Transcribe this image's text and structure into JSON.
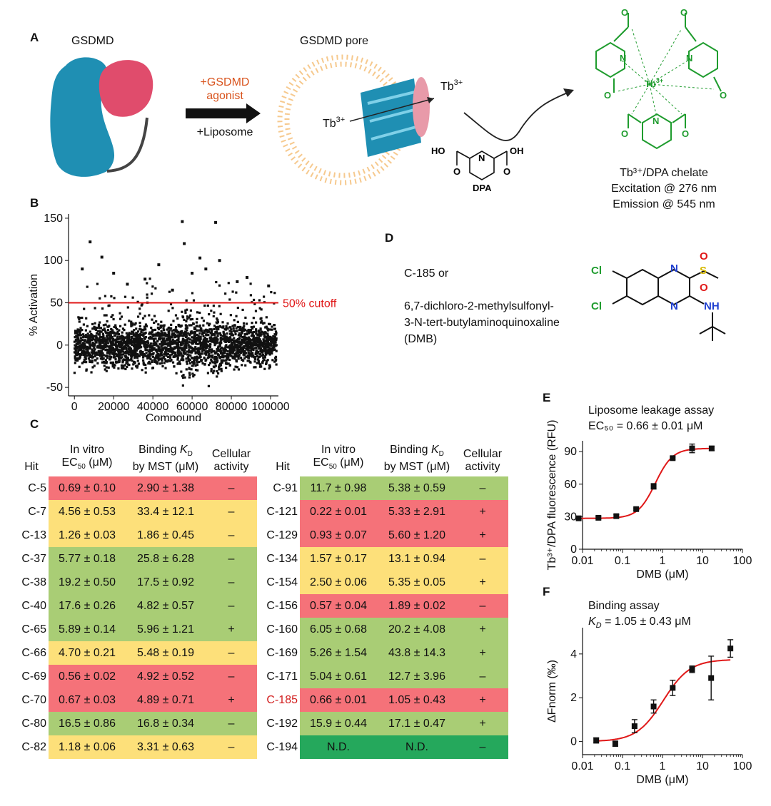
{
  "panel_labels": {
    "a": "A",
    "b": "B",
    "c": "C",
    "d": "D",
    "e": "E",
    "f": "F"
  },
  "panel_a": {
    "gsdmd_label": "GSDMD",
    "pore_label": "GSDMD pore",
    "agonist_text_1": "+GSDMD",
    "agonist_text_2": "agonist",
    "liposome_text": "+Liposome",
    "tb_inside": "Tb",
    "tb_inside_sup": "3+",
    "tb_outside": "Tb",
    "tb_outside_sup": "3+",
    "dpa_label": "DPA",
    "chelate_center": "Tb",
    "chelate_center_sup": "3+",
    "chelate_title": "Tb³⁺/DPA chelate",
    "excitation": "Excitation @ 276 nm",
    "emission": "Emission @ 545 nm",
    "colors": {
      "gsdmd_blue": "#1f8fb3",
      "gsdmd_pink": "#e04c6c",
      "agonist": "#d9541e",
      "chem_green": "#1f9c2e"
    }
  },
  "chart_data": [
    {
      "panel": "B",
      "type": "scatter",
      "xlabel": "Compound",
      "ylabel": "% Activation",
      "xlim": [
        -3000,
        104000
      ],
      "ylim": [
        -60,
        155
      ],
      "xticks": [
        0,
        20000,
        40000,
        60000,
        80000,
        100000
      ],
      "xtick_labels": [
        "0",
        "20000",
        "40000",
        "60000",
        "80000",
        "100000"
      ],
      "yticks": [
        -50,
        0,
        50,
        100,
        150
      ],
      "ytick_labels": [
        "-50",
        "0",
        "50",
        "100",
        "150"
      ],
      "cutoff_value": 50,
      "cutoff_label": "50% cutoff",
      "n_points": 103000,
      "outliers": [
        {
          "x": 8000,
          "y": 122
        },
        {
          "x": 14000,
          "y": 104
        },
        {
          "x": 55000,
          "y": 146
        },
        {
          "x": 56000,
          "y": 120
        },
        {
          "x": 72000,
          "y": 145
        },
        {
          "x": 64000,
          "y": 103
        },
        {
          "x": 74000,
          "y": 100
        },
        {
          "x": 43000,
          "y": 95
        },
        {
          "x": 88000,
          "y": 80
        },
        {
          "x": 36000,
          "y": 78
        },
        {
          "x": 20000,
          "y": 85
        },
        {
          "x": 99000,
          "y": 70
        },
        {
          "x": 4000,
          "y": 90
        },
        {
          "x": 60000,
          "y": 85
        },
        {
          "x": 67000,
          "y": 90
        },
        {
          "x": 83000,
          "y": 75
        },
        {
          "x": 27000,
          "y": 72
        },
        {
          "x": 50000,
          "y": 65
        }
      ]
    },
    {
      "panel": "E",
      "type": "line",
      "title": "Liposome leakage assay",
      "subtitle": "EC₅₀ = 0.66 ± 0.01 μM",
      "xlabel": "DMB (μM)",
      "ylabel": "Tb³⁺/DPA fluorescence (RFU)",
      "xscale": "log",
      "xlim": [
        0.01,
        100
      ],
      "ylim": [
        0,
        100
      ],
      "xticks": [
        0.01,
        0.1,
        1,
        10,
        100
      ],
      "xtick_labels": [
        "0.01",
        "0.1",
        "1",
        "10",
        "100"
      ],
      "yticks": [
        0,
        30,
        60,
        90
      ],
      "ytick_labels": [
        "0",
        "30",
        "60",
        "90"
      ],
      "fit": {
        "bottom": 28.5,
        "top": 93,
        "ec50": 0.66,
        "hill": 2.0
      },
      "points": [
        {
          "x": 0.008,
          "y": 28.5,
          "err": 1
        },
        {
          "x": 0.025,
          "y": 29,
          "err": 1
        },
        {
          "x": 0.07,
          "y": 30.5,
          "err": 1.5
        },
        {
          "x": 0.22,
          "y": 37,
          "err": 1
        },
        {
          "x": 0.6,
          "y": 58,
          "err": 2.5
        },
        {
          "x": 1.8,
          "y": 84,
          "err": 1
        },
        {
          "x": 5.5,
          "y": 93,
          "err": 4
        },
        {
          "x": 17,
          "y": 93,
          "err": 2
        }
      ]
    },
    {
      "panel": "F",
      "type": "line",
      "title": "Binding assay",
      "subtitle_prefix": "K",
      "subtitle_sub": "D",
      "subtitle_rest": " = 1.05 ± 0.43 μM",
      "xlabel": "DMB (μM)",
      "ylabel": "ΔFnorm (‰)",
      "xscale": "log",
      "xlim": [
        0.01,
        100
      ],
      "ylim": [
        -0.6,
        5.2
      ],
      "xticks": [
        0.01,
        0.1,
        1,
        10,
        100
      ],
      "xtick_labels": [
        "0.01",
        "0.1",
        "1",
        "10",
        "100"
      ],
      "yticks": [
        0,
        2,
        4
      ],
      "ytick_labels": [
        "0",
        "2",
        "4"
      ],
      "fit": {
        "bottom": 0.0,
        "top": 3.75,
        "ec50": 1.05,
        "hill": 1.3
      },
      "points": [
        {
          "x": 0.022,
          "y": 0.05,
          "err": 0.12
        },
        {
          "x": 0.066,
          "y": -0.1,
          "err": 0.12
        },
        {
          "x": 0.2,
          "y": 0.7,
          "err": 0.3
        },
        {
          "x": 0.6,
          "y": 1.6,
          "err": 0.3
        },
        {
          "x": 1.8,
          "y": 2.45,
          "err": 0.35
        },
        {
          "x": 5.5,
          "y": 3.3,
          "err": 0.15
        },
        {
          "x": 16.5,
          "y": 2.9,
          "err": 1.0
        },
        {
          "x": 50,
          "y": 4.25,
          "err": 0.4
        }
      ]
    }
  ],
  "panel_c": {
    "headers": {
      "hit": "Hit",
      "ec50_l1": "In vitro",
      "ec50_l2a": "EC",
      "ec50_sub": "50",
      "ec50_l2b": " (μM)",
      "kd_l1a": "Binding ",
      "kd_l1b": "K",
      "kd_sub": "D",
      "kd_l2": "by MST (μM)",
      "cell_l1": "Cellular",
      "cell_l2": "activity"
    },
    "left_rows": [
      {
        "hit": "C-5",
        "ec50": "0.69 ± 0.10",
        "kd": "2.90 ± 1.38",
        "cell": "–",
        "color": "r"
      },
      {
        "hit": "C-7",
        "ec50": "4.56 ± 0.53",
        "kd": "33.4 ± 12.1",
        "cell": "–",
        "color": "y"
      },
      {
        "hit": "C-13",
        "ec50": "1.26 ± 0.03",
        "kd": "1.86 ± 0.45",
        "cell": "–",
        "color": "y"
      },
      {
        "hit": "C-37",
        "ec50": "5.77 ± 0.18",
        "kd": "25.8 ± 6.28",
        "cell": "–",
        "color": "g"
      },
      {
        "hit": "C-38",
        "ec50": "19.2 ± 0.50",
        "kd": "17.5 ± 0.92",
        "cell": "–",
        "color": "g"
      },
      {
        "hit": "C-40",
        "ec50": "17.6 ± 0.26",
        "kd": "4.82 ± 0.57",
        "cell": "–",
        "color": "g"
      },
      {
        "hit": "C-65",
        "ec50": "5.89 ± 0.14",
        "kd": "5.96 ± 1.21",
        "cell": "+",
        "color": "g"
      },
      {
        "hit": "C-66",
        "ec50": "4.70 ± 0.21",
        "kd": "5.48 ± 0.19",
        "cell": "–",
        "color": "y"
      },
      {
        "hit": "C-69",
        "ec50": "0.56 ± 0.02",
        "kd": "4.92 ± 0.52",
        "cell": "–",
        "color": "r"
      },
      {
        "hit": "C-70",
        "ec50": "0.67 ± 0.03",
        "kd": "4.89 ± 0.71",
        "cell": "+",
        "color": "r"
      },
      {
        "hit": "C-80",
        "ec50": "16.5 ± 0.86",
        "kd": "16.8 ± 0.34",
        "cell": "–",
        "color": "g"
      },
      {
        "hit": "C-82",
        "ec50": "1.18 ± 0.06",
        "kd": "3.31 ± 0.63",
        "cell": "–",
        "color": "y"
      }
    ],
    "right_rows": [
      {
        "hit": "C-91",
        "ec50": "11.7 ± 0.98",
        "kd": "5.38 ± 0.59",
        "cell": "–",
        "color": "g"
      },
      {
        "hit": "C-121",
        "ec50": "0.22 ± 0.01",
        "kd": "5.33 ± 2.91",
        "cell": "+",
        "color": "r"
      },
      {
        "hit": "C-129",
        "ec50": "0.93 ± 0.07",
        "kd": "5.60 ± 1.20",
        "cell": "+",
        "color": "r"
      },
      {
        "hit": "C-134",
        "ec50": "1.57 ± 0.17",
        "kd": "13.1 ± 0.94",
        "cell": "–",
        "color": "y"
      },
      {
        "hit": "C-154",
        "ec50": "2.50 ± 0.06",
        "kd": "5.35 ± 0.05",
        "cell": "+",
        "color": "y"
      },
      {
        "hit": "C-156",
        "ec50": "0.57 ± 0.04",
        "kd": "1.89 ± 0.02",
        "cell": "–",
        "color": "r"
      },
      {
        "hit": "C-160",
        "ec50": "6.05 ± 0.68",
        "kd": "20.2 ± 4.08",
        "cell": "+",
        "color": "g"
      },
      {
        "hit": "C-169",
        "ec50": "5.26 ± 1.54",
        "kd": "43.8 ± 14.3",
        "cell": "+",
        "color": "g"
      },
      {
        "hit": "C-171",
        "ec50": "5.04 ± 0.61",
        "kd": "12.7 ± 3.96",
        "cell": "–",
        "color": "g"
      },
      {
        "hit": "C-185",
        "ec50": "0.66 ± 0.01",
        "kd": "1.05 ± 0.43",
        "cell": "+",
        "color": "r",
        "highlight": true
      },
      {
        "hit": "C-192",
        "ec50": "15.9 ± 0.44",
        "kd": "17.1 ± 0.47",
        "cell": "+",
        "color": "g"
      },
      {
        "hit": "C-194",
        "ec50": "N.D.",
        "kd": "N.D.",
        "cell": "–",
        "color": "dg"
      }
    ]
  },
  "panel_d": {
    "line1": "C-185 or",
    "line2": "6,7-dichloro-2-methylsulfonyl-",
    "line3": "3-N-tert-butylaminoquinoxaline",
    "line4": "(DMB)",
    "atoms": {
      "cl1": "Cl",
      "cl2": "Cl",
      "n1": "N",
      "n2": "N",
      "s": "S",
      "o1": "O",
      "o2": "O",
      "nh": "NH"
    }
  }
}
